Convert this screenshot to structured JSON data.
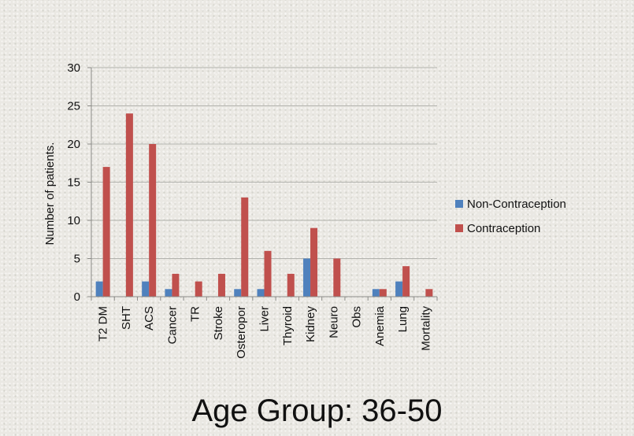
{
  "page": {
    "title": "Age Group: 36-50"
  },
  "colors": {
    "non_contraception": "#4f81bd",
    "contraception": "#c0504d",
    "grid": "#b3b3ae",
    "axis": "#8c8c88"
  },
  "chart_data": {
    "type": "bar",
    "title": "",
    "xlabel": "",
    "ylabel": "Number of patients.",
    "ylim": [
      0,
      30
    ],
    "yticks": [
      0,
      5,
      10,
      15,
      20,
      25,
      30
    ],
    "grid": true,
    "legend_position": "right",
    "categories": [
      "T2 DM",
      "SHT",
      "ACS",
      "Cancer",
      "TR",
      "Stroke",
      "Osteropor",
      "Liver",
      "Thyroid",
      "Kidney",
      "Neuro",
      "Obs",
      "Anemia",
      "Lung",
      "Mortality"
    ],
    "series": [
      {
        "name": "Non-Contraception",
        "color": "#4f81bd",
        "values": [
          2,
          0,
          2,
          1,
          0,
          0,
          1,
          1,
          0,
          5,
          0,
          0,
          1,
          2,
          0
        ]
      },
      {
        "name": "Contraception",
        "color": "#c0504d",
        "values": [
          17,
          24,
          20,
          3,
          2,
          3,
          13,
          6,
          3,
          9,
          5,
          0,
          1,
          4,
          1
        ]
      }
    ]
  }
}
